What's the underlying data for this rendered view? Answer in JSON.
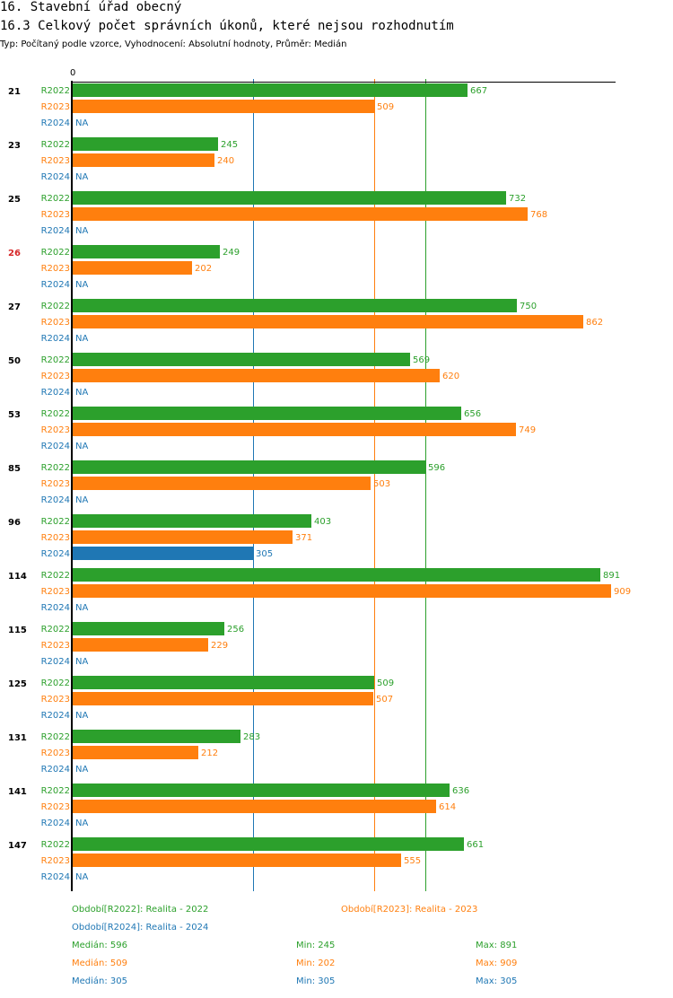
{
  "header": {
    "title": "16. Stavební úřad obecný",
    "subtitle": "16.3 Celkový počet správních úkonů, které nejsou rozhodnutím",
    "info": "Typ: Počítaný podle vzorce, Vyhodnocení: Absolutní hodnoty, Průměr: Medián"
  },
  "chart_data": {
    "type": "bar",
    "orientation": "horizontal",
    "title": "16.3 Celkový počet správních úkonů, které nejsou rozhodnutím",
    "axis_zero_label": "0",
    "xlim": [
      0,
      909
    ],
    "grid": false,
    "na_label": "NA",
    "categories": [
      "21",
      "23",
      "25",
      "26",
      "27",
      "50",
      "53",
      "85",
      "96",
      "114",
      "115",
      "125",
      "131",
      "141",
      "147"
    ],
    "highlighted_categories": [
      "26"
    ],
    "series": [
      {
        "name": "R2022",
        "color": "#2ca02c",
        "values": [
          667,
          245,
          732,
          249,
          750,
          569,
          656,
          596,
          403,
          891,
          256,
          509,
          283,
          636,
          661
        ]
      },
      {
        "name": "R2023",
        "color": "#ff7f0e",
        "values": [
          509,
          240,
          768,
          202,
          862,
          620,
          749,
          503,
          371,
          909,
          229,
          507,
          212,
          614,
          555
        ]
      },
      {
        "name": "R2024",
        "color": "#1f77b4",
        "values": [
          null,
          null,
          null,
          null,
          null,
          null,
          null,
          null,
          305,
          null,
          null,
          null,
          null,
          null,
          null
        ]
      }
    ],
    "median_lines": [
      {
        "series": "R2022",
        "value": 596
      },
      {
        "series": "R2023",
        "value": 509
      },
      {
        "series": "R2024",
        "value": 305
      }
    ],
    "legend": [
      {
        "series": "R2022",
        "text": "Období[R2022]: Realita - 2022"
      },
      {
        "series": "R2023",
        "text": "Období[R2023]: Realita - 2023"
      },
      {
        "series": "R2024",
        "text": "Období[R2024]: Realita - 2024"
      }
    ],
    "legend_position": "bottom",
    "stats": [
      {
        "series": "R2022",
        "median": "Medián: 596",
        "min": "Min: 245",
        "max": "Max: 891"
      },
      {
        "series": "R2023",
        "median": "Medián: 509",
        "min": "Min: 202",
        "max": "Max: 909"
      },
      {
        "series": "R2024",
        "median": "Medián: 305",
        "min": "Min: 305",
        "max": "Max: 305"
      }
    ]
  },
  "colors": {
    "R2022": "#2ca02c",
    "R2023": "#ff7f0e",
    "R2024": "#1f77b4",
    "highlight": "#d62728",
    "axis": "#000000"
  }
}
